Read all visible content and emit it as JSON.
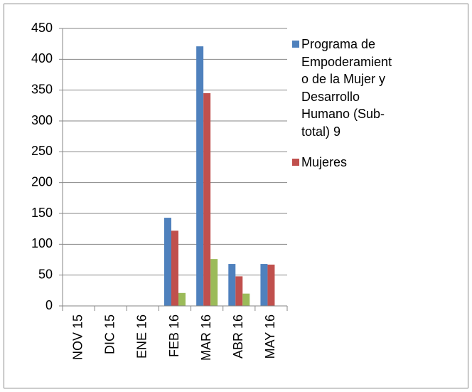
{
  "chart_data": {
    "type": "bar",
    "categories": [
      "NOV 15",
      "DIC 15",
      "ENE 16",
      "FEB 16",
      "MAR 16",
      "ABR 16",
      "MAY 16"
    ],
    "series": [
      {
        "name": "Programa de Empoderamiento de la Mujer y Desarrollo Humano (Sub-total) 9",
        "color": "#4f81bd",
        "values": [
          null,
          null,
          null,
          143,
          421,
          68,
          68
        ]
      },
      {
        "name": "Mujeres",
        "color": "#c0504d",
        "values": [
          null,
          null,
          null,
          122,
          345,
          48,
          67
        ]
      },
      {
        "color": "#9bbb59",
        "values": [
          null,
          null,
          null,
          21,
          76,
          20,
          null
        ]
      }
    ],
    "ylim": [
      0,
      450
    ],
    "yticks": [
      0,
      50,
      100,
      150,
      200,
      250,
      300,
      350,
      400,
      450
    ],
    "grid": true
  }
}
